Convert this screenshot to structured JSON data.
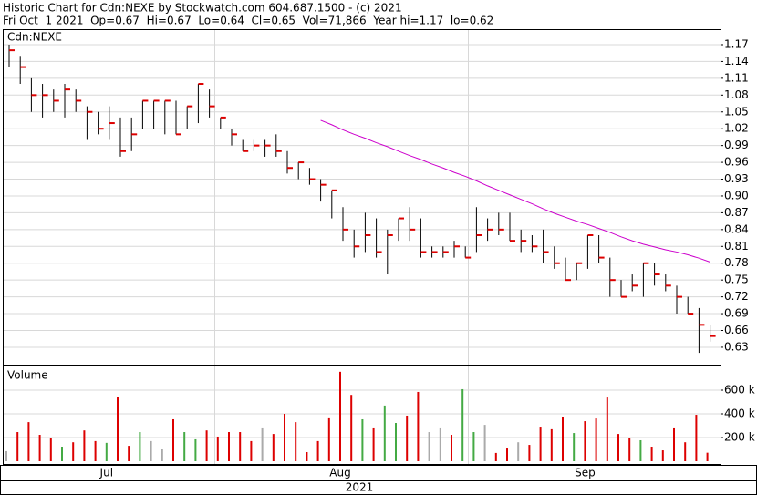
{
  "chart_data": [
    {
      "type": "ohlc",
      "title": "Historic Chart for Cdn:NEXE by Stockwatch.com 604.687.1500 - (c) 2021",
      "subtitle": "Fri Oct  1 2021  Op=0.67  Hi=0.67  Lo=0.64  Cl=0.65  Vol=71,866  Year hi=1.17  lo=0.62",
      "label": "Cdn:NEXE",
      "high": [
        1.17,
        1.15,
        1.11,
        1.1,
        1.09,
        1.1,
        1.09,
        1.06,
        1.05,
        1.06,
        1.04,
        1.04,
        1.07,
        1.07,
        1.07,
        1.07,
        1.06,
        1.1,
        1.09,
        1.04,
        1.02,
        1.0,
        1.0,
        1.0,
        1.01,
        0.98,
        0.96,
        0.95,
        0.93,
        0.91,
        0.88,
        0.84,
        0.87,
        0.86,
        0.84,
        0.86,
        0.88,
        0.86,
        0.81,
        0.81,
        0.82,
        0.81,
        0.88,
        0.86,
        0.87,
        0.87,
        0.84,
        0.83,
        0.84,
        0.81,
        0.79,
        0.78,
        0.83,
        0.83,
        0.79,
        0.75,
        0.76,
        0.78,
        0.78,
        0.76,
        0.74,
        0.72,
        0.7,
        0.67
      ],
      "low": [
        1.13,
        1.1,
        1.05,
        1.04,
        1.05,
        1.04,
        1.05,
        1.0,
        1.01,
        1.0,
        0.97,
        0.98,
        1.02,
        1.02,
        1.01,
        1.01,
        1.02,
        1.03,
        1.04,
        1.02,
        0.99,
        0.98,
        0.98,
        0.97,
        0.97,
        0.94,
        0.93,
        0.92,
        0.89,
        0.86,
        0.82,
        0.79,
        0.8,
        0.79,
        0.76,
        0.82,
        0.82,
        0.79,
        0.79,
        0.79,
        0.79,
        0.79,
        0.8,
        0.82,
        0.83,
        0.82,
        0.8,
        0.8,
        0.78,
        0.77,
        0.75,
        0.75,
        0.77,
        0.78,
        0.72,
        0.72,
        0.73,
        0.72,
        0.74,
        0.73,
        0.69,
        0.69,
        0.62,
        0.64
      ],
      "close": [
        1.16,
        1.13,
        1.08,
        1.08,
        1.07,
        1.09,
        1.07,
        1.05,
        1.02,
        1.03,
        0.98,
        1.01,
        1.07,
        1.07,
        1.07,
        1.01,
        1.06,
        1.1,
        1.06,
        1.04,
        1.01,
        0.98,
        0.99,
        0.99,
        0.98,
        0.95,
        0.96,
        0.93,
        0.92,
        0.91,
        0.84,
        0.81,
        0.83,
        0.8,
        0.83,
        0.86,
        0.84,
        0.8,
        0.8,
        0.8,
        0.81,
        0.79,
        0.83,
        0.84,
        0.84,
        0.82,
        0.82,
        0.81,
        0.8,
        0.78,
        0.75,
        0.78,
        0.83,
        0.79,
        0.75,
        0.72,
        0.74,
        0.78,
        0.76,
        0.74,
        0.72,
        0.69,
        0.67,
        0.65
      ],
      "bar_color": "#000000",
      "close_color": "#dd0000",
      "series": [
        {
          "color": "#cc00cc",
          "values": [
            null,
            null,
            null,
            null,
            null,
            null,
            null,
            null,
            null,
            null,
            null,
            null,
            null,
            null,
            null,
            null,
            null,
            null,
            null,
            null,
            null,
            null,
            null,
            null,
            null,
            null,
            null,
            null,
            1.035,
            1.027,
            1.018,
            1.01,
            1.003,
            0.995,
            0.988,
            0.98,
            0.972,
            0.965,
            0.957,
            0.95,
            0.942,
            0.935,
            0.927,
            0.918,
            0.91,
            0.902,
            0.894,
            0.886,
            0.877,
            0.869,
            0.862,
            0.855,
            0.849,
            0.842,
            0.835,
            0.827,
            0.82,
            0.814,
            0.809,
            0.804,
            0.8,
            0.795,
            0.789,
            0.782
          ]
        }
      ],
      "ylim": [
        0.599,
        1.196
      ],
      "yticks": [
        0.63,
        0.66,
        0.69,
        0.72,
        0.75,
        0.78,
        0.81,
        0.84,
        0.87,
        {
          "value": 0.9,
          "label": "0.90"
        },
        0.93,
        0.96,
        0.99,
        1.02,
        1.05,
        1.08,
        1.11,
        1.14,
        1.17
      ],
      "grid": true
    },
    {
      "type": "bar",
      "label": "Volume",
      "xlabel": "2021",
      "categories": [
        null,
        null,
        null,
        null,
        null,
        null,
        null,
        null,
        null,
        "Jul",
        null,
        null,
        null,
        null,
        null,
        null,
        null,
        null,
        null,
        null,
        null,
        null,
        null,
        null,
        null,
        null,
        null,
        null,
        null,
        null,
        "Aug",
        null,
        null,
        null,
        null,
        null,
        null,
        null,
        null,
        null,
        null,
        null,
        null,
        null,
        null,
        null,
        null,
        null,
        null,
        null,
        null,
        null,
        "Sep",
        null,
        null,
        null,
        null,
        null,
        null,
        null,
        null,
        null,
        null,
        null
      ],
      "values": [
        85000,
        246000,
        330000,
        223000,
        200000,
        123000,
        160000,
        260000,
        170000,
        155000,
        546000,
        130000,
        246000,
        170000,
        100000,
        354000,
        246000,
        185000,
        260000,
        208000,
        246000,
        246000,
        170000,
        285000,
        230000,
        400000,
        330000,
        77000,
        170000,
        370000,
        755000,
        560000,
        354000,
        285000,
        470000,
        323000,
        385000,
        585000,
        246000,
        285000,
        223000,
        608000,
        246000,
        307000,
        70000,
        115000,
        160000,
        138000,
        292000,
        270000,
        377000,
        238000,
        338000,
        361000,
        538000,
        230000,
        200000,
        177000,
        123000,
        92000,
        285000,
        160000,
        392000,
        71866
      ],
      "colors": [
        "#aaaaaa",
        "#dd0000",
        "#dd0000",
        "#dd0000",
        "#dd0000",
        "#44aa44",
        "#dd0000",
        "#dd0000",
        "#dd0000",
        "#44aa44",
        "#dd0000",
        "#dd0000",
        "#44aa44",
        "#aaaaaa",
        "#aaaaaa",
        "#dd0000",
        "#44aa44",
        "#44aa44",
        "#dd0000",
        "#dd0000",
        "#dd0000",
        "#dd0000",
        "#dd0000",
        "#aaaaaa",
        "#dd0000",
        "#dd0000",
        "#dd0000",
        "#dd0000",
        "#dd0000",
        "#dd0000",
        "#dd0000",
        "#dd0000",
        "#44aa44",
        "#dd0000",
        "#44aa44",
        "#44aa44",
        "#dd0000",
        "#dd0000",
        "#aaaaaa",
        "#aaaaaa",
        "#dd0000",
        "#44aa44",
        "#44aa44",
        "#aaaaaa",
        "#dd0000",
        "#dd0000",
        "#aaaaaa",
        "#dd0000",
        "#dd0000",
        "#dd0000",
        "#dd0000",
        "#44aa44",
        "#dd0000",
        "#dd0000",
        "#dd0000",
        "#dd0000",
        "#dd0000",
        "#44aa44",
        "#dd0000",
        "#dd0000",
        "#dd0000",
        "#dd0000",
        "#dd0000",
        "#dd0000"
      ],
      "ylim": [
        0,
        800000
      ],
      "yticks": [
        {
          "value": 200000,
          "label": "200 k"
        },
        {
          "value": 400000,
          "label": "400 k"
        },
        {
          "value": 600000,
          "label": "600 k"
        }
      ],
      "grid": true
    }
  ]
}
